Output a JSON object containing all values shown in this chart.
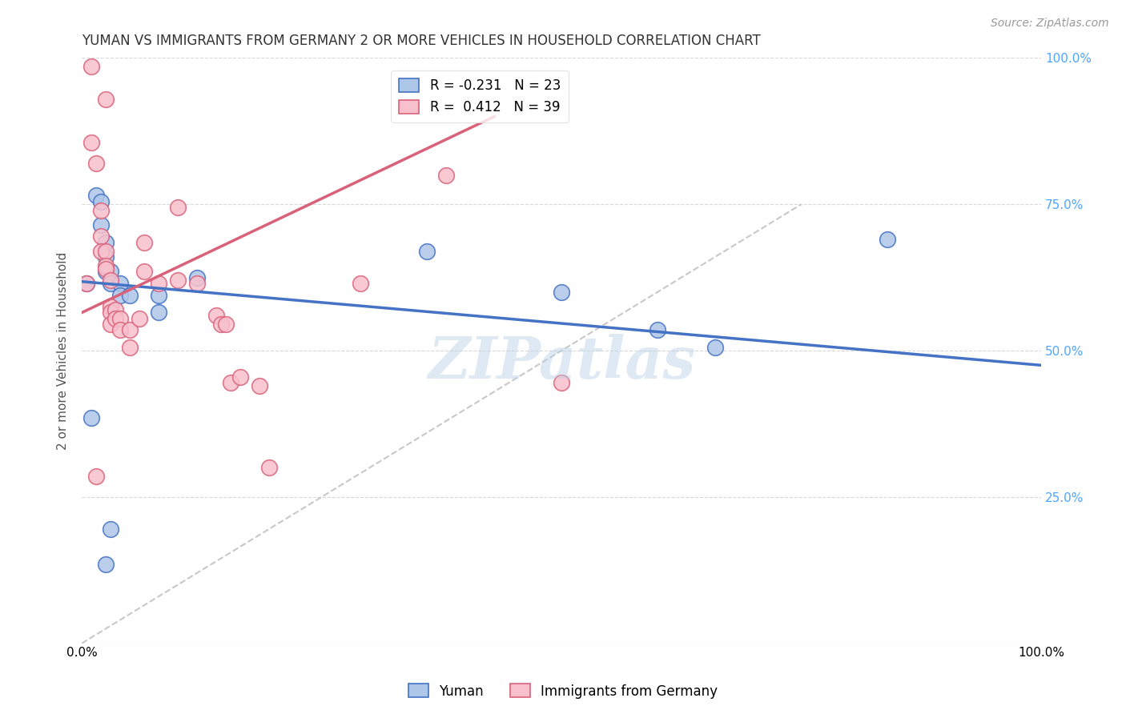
{
  "title": "YUMAN VS IMMIGRANTS FROM GERMANY 2 OR MORE VEHICLES IN HOUSEHOLD CORRELATION CHART",
  "source": "Source: ZipAtlas.com",
  "ylabel": "2 or more Vehicles in Household",
  "xlim": [
    0,
    1
  ],
  "ylim": [
    0,
    1
  ],
  "background_color": "#ffffff",
  "watermark": "ZIPatlas",
  "blue_scatter_x": [
    0.005,
    0.01,
    0.015,
    0.02,
    0.02,
    0.025,
    0.025,
    0.025,
    0.03,
    0.03,
    0.04,
    0.04,
    0.05,
    0.08,
    0.08,
    0.12,
    0.36,
    0.5,
    0.6,
    0.66,
    0.84,
    0.03,
    0.025
  ],
  "blue_scatter_y": [
    0.615,
    0.385,
    0.765,
    0.755,
    0.715,
    0.685,
    0.66,
    0.635,
    0.635,
    0.615,
    0.615,
    0.595,
    0.595,
    0.595,
    0.565,
    0.625,
    0.67,
    0.6,
    0.535,
    0.505,
    0.69,
    0.195,
    0.135
  ],
  "pink_scatter_x": [
    0.005,
    0.01,
    0.01,
    0.015,
    0.02,
    0.02,
    0.02,
    0.025,
    0.025,
    0.025,
    0.03,
    0.03,
    0.03,
    0.03,
    0.035,
    0.035,
    0.04,
    0.04,
    0.05,
    0.05,
    0.06,
    0.065,
    0.065,
    0.08,
    0.1,
    0.1,
    0.12,
    0.14,
    0.145,
    0.15,
    0.155,
    0.165,
    0.185,
    0.195,
    0.29,
    0.38,
    0.5,
    0.015,
    0.025
  ],
  "pink_scatter_y": [
    0.615,
    0.985,
    0.855,
    0.82,
    0.74,
    0.695,
    0.67,
    0.67,
    0.645,
    0.64,
    0.62,
    0.575,
    0.565,
    0.545,
    0.57,
    0.555,
    0.555,
    0.535,
    0.535,
    0.505,
    0.555,
    0.685,
    0.635,
    0.615,
    0.745,
    0.62,
    0.615,
    0.56,
    0.545,
    0.545,
    0.445,
    0.455,
    0.44,
    0.3,
    0.615,
    0.8,
    0.445,
    0.285,
    0.93
  ],
  "blue_line_x": [
    0.0,
    1.0
  ],
  "blue_line_y": [
    0.618,
    0.475
  ],
  "pink_line_x": [
    0.0,
    0.43
  ],
  "pink_line_y": [
    0.565,
    0.9
  ],
  "dashed_line_x": [
    0.0,
    0.75
  ],
  "dashed_line_y": [
    0.0,
    0.75
  ],
  "legend_entries": [
    {
      "label": "R = -0.231   N = 23"
    },
    {
      "label": "R =  0.412   N = 39"
    }
  ],
  "legend_labels_bottom": [
    "Yuman",
    "Immigrants from Germany"
  ],
  "blue_color": "#aec6e8",
  "blue_edge_color": "#4472c4",
  "pink_color": "#f8c0cc",
  "pink_edge_color": "#d9627a",
  "blue_line_color": "#4472c4",
  "pink_line_color": "#d9627a",
  "dashed_line_color": "#c8c8c8",
  "grid_color": "#d8d8d8",
  "title_fontsize": 12,
  "source_fontsize": 10,
  "axis_label_fontsize": 11,
  "tick_fontsize": 11,
  "watermark_fontsize": 52,
  "watermark_color": "#b8d0e8",
  "watermark_alpha": 0.45,
  "legend_fontsize": 12,
  "right_ytick_color": "#4da6ff"
}
